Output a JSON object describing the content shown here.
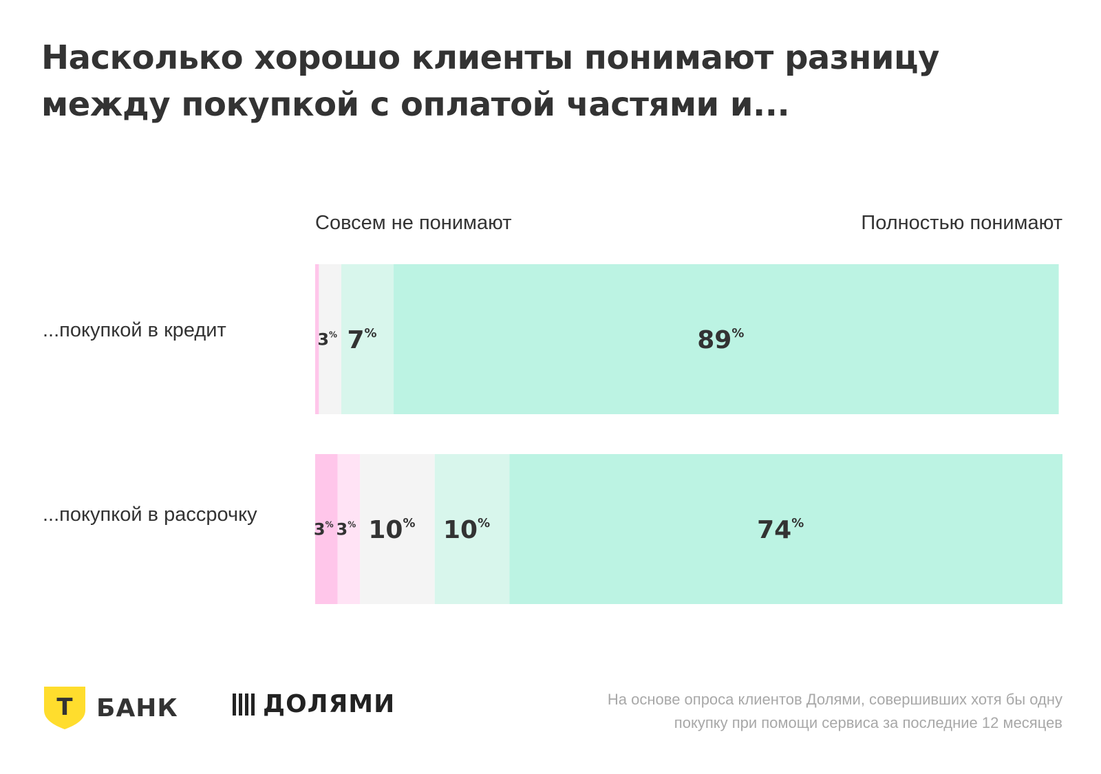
{
  "title": "Насколько хорошо клиенты понимают разницу между покупкой с оплатой частями и...",
  "scale": {
    "left_label": "Совсем не понимают",
    "right_label": "Полностью понимают"
  },
  "colors": {
    "scale": [
      "#ffc6ea",
      "#ffe3f5",
      "#f4f4f4",
      "#d8f6ec",
      "#bcf3e3"
    ],
    "text": "#333333"
  },
  "chart_data": {
    "type": "bar",
    "orientation": "horizontal",
    "stacked": true,
    "unit": "%",
    "categories": [
      "...покупкой в кредит",
      "...покупкой в рассрочку"
    ],
    "series": [
      {
        "values": [
          0.5,
          3
        ]
      },
      {
        "values": [
          0,
          3
        ]
      },
      {
        "values": [
          3,
          10
        ]
      },
      {
        "values": [
          7,
          10
        ]
      },
      {
        "values": [
          89,
          74
        ]
      }
    ],
    "data_labels": [
      [
        "",
        "",
        "3",
        "7",
        "89"
      ],
      [
        "3",
        "3",
        "10",
        "10",
        "74"
      ]
    ],
    "xlim": [
      0,
      100
    ]
  },
  "logos": {
    "tbank_mark": "Т",
    "tbank_word": "БАНК",
    "dolyami_word": "ДОЛЯМИ"
  },
  "source_note": {
    "line1": "На основе опроса клиентов Долями, совершивших хотя бы одну",
    "line2": "покупку при помощи сервиса за последние 12 месяцев"
  }
}
